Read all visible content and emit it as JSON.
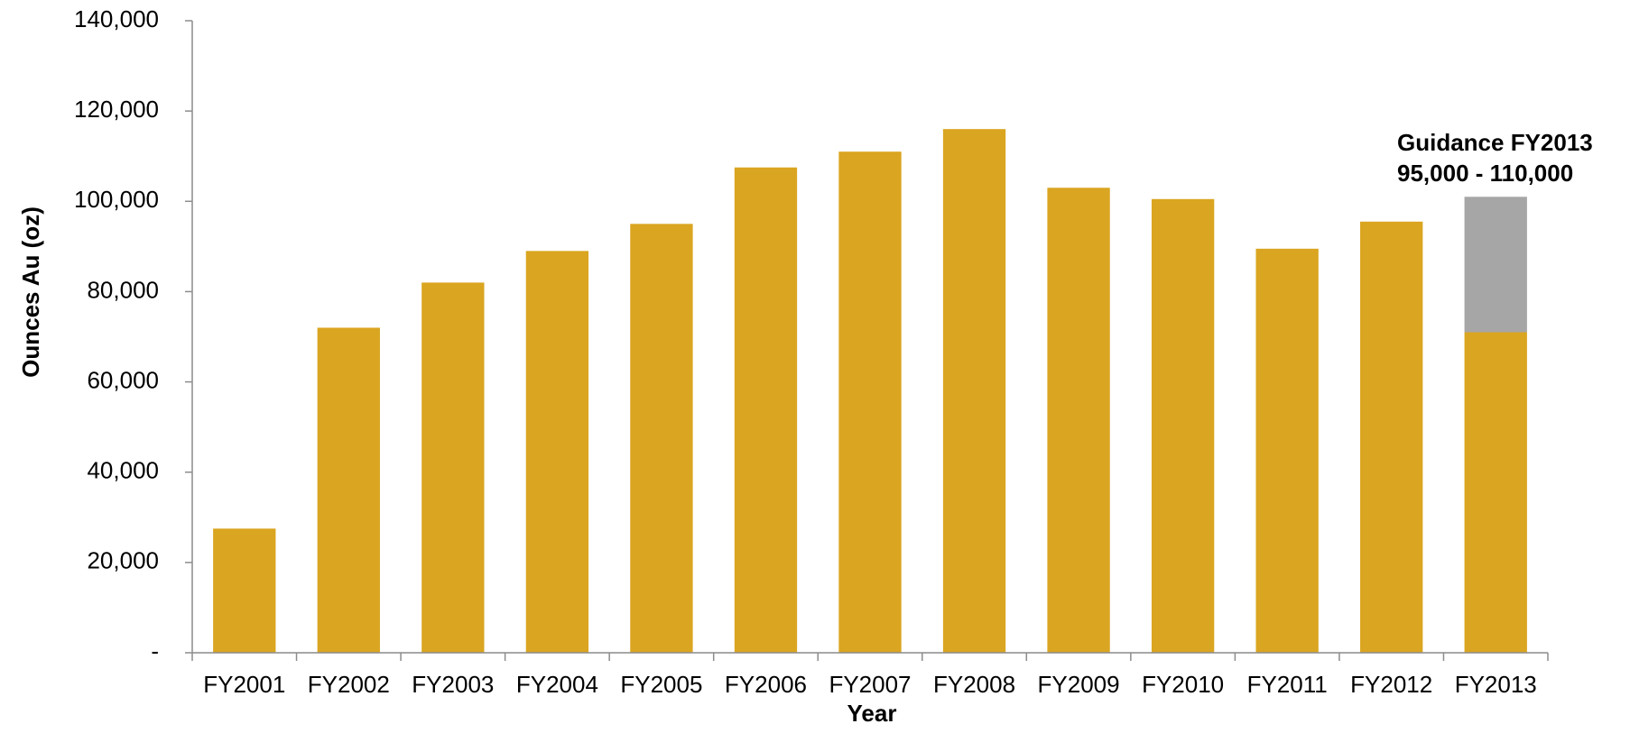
{
  "chart_data": {
    "type": "bar",
    "title": "",
    "xlabel": "Year",
    "ylabel": "Ounces Au (oz)",
    "ylim": [
      0,
      140000
    ],
    "yticks": [
      0,
      20000,
      40000,
      60000,
      80000,
      100000,
      120000,
      140000
    ],
    "ytick_labels": [
      "-",
      "20,000",
      "40,000",
      "60,000",
      "80,000",
      "100,000",
      "120,000",
      "140,000"
    ],
    "categories": [
      "FY2001",
      "FY2002",
      "FY2003",
      "FY2004",
      "FY2005",
      "FY2006",
      "FY2007",
      "FY2008",
      "FY2009",
      "FY2010",
      "FY2011",
      "FY2012",
      "FY2013"
    ],
    "series": [
      {
        "values": [
          27500,
          72000,
          82000,
          89000,
          95000,
          107500,
          111000,
          116000,
          103000,
          100500,
          89500,
          95500,
          71000
        ],
        "color": "#DAA520"
      },
      {
        "values": [
          0,
          0,
          0,
          0,
          0,
          0,
          0,
          0,
          0,
          0,
          0,
          0,
          30000
        ],
        "color": "#A6A6A6"
      }
    ],
    "stacked": true,
    "grid": false,
    "legend": "none",
    "annotation": {
      "line1": "Guidance FY2013",
      "line2": "95,000 - 110,000"
    }
  }
}
